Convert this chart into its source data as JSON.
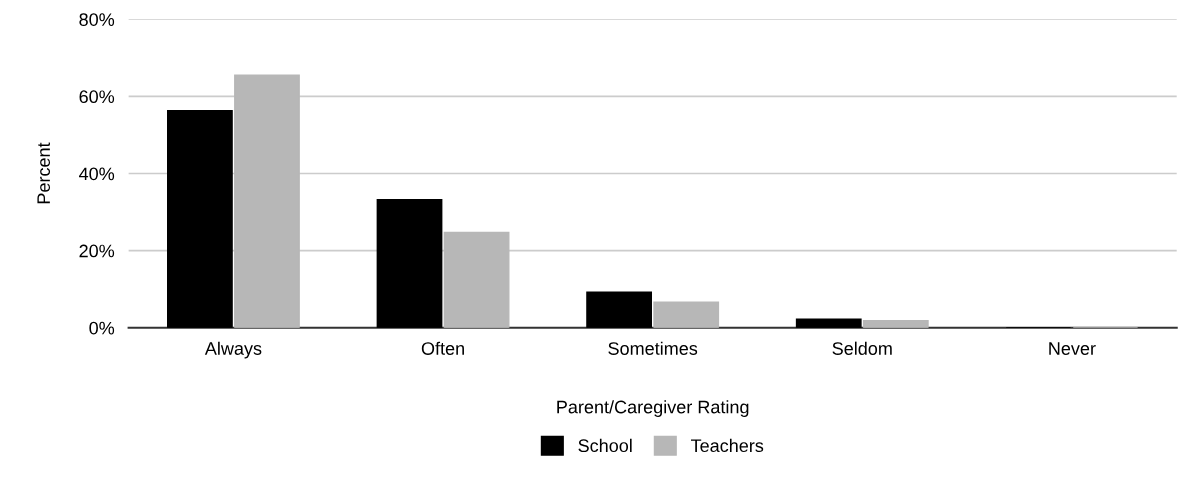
{
  "chart_data": {
    "type": "bar",
    "xlabel": "Parent/Caregiver Rating",
    "ylabel": "Percent",
    "categories": [
      "Always",
      "Often",
      "Sometimes",
      "Seldom",
      "Never"
    ],
    "series": [
      {
        "name": "School",
        "color": "#000000",
        "values": [
          56.3,
          33.2,
          9.2,
          2.2,
          0
        ]
      },
      {
        "name": "Teachers",
        "color": "#b7b7b7",
        "values": [
          65.5,
          24.7,
          6.6,
          1.8,
          0
        ]
      }
    ],
    "ylim": [
      0,
      80
    ],
    "yticks": [
      {
        "value": 0,
        "label": "0%"
      },
      {
        "value": 20,
        "label": "20%"
      },
      {
        "value": 40,
        "label": "40%"
      },
      {
        "value": 60,
        "label": "60%"
      },
      {
        "value": 80,
        "label": "80%"
      }
    ],
    "grid": "y",
    "legend": "bottom"
  }
}
